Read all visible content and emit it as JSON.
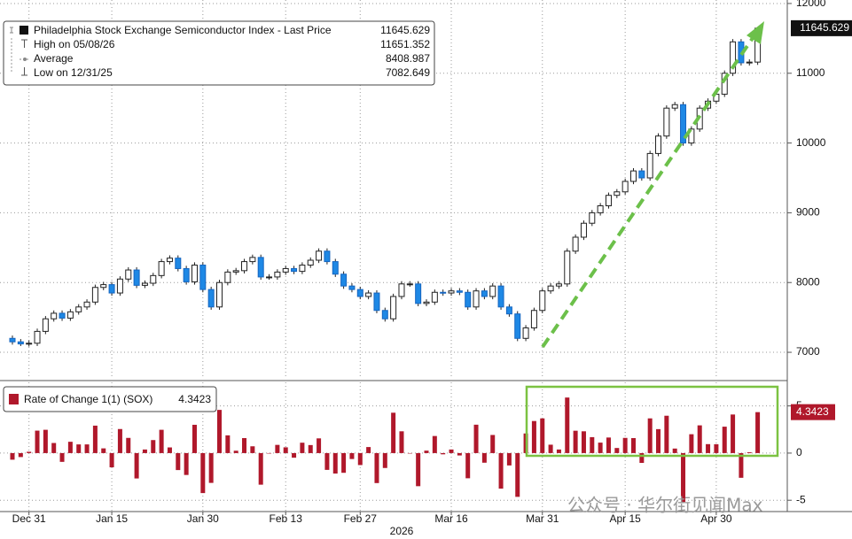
{
  "chart_data": [
    {
      "type": "candlestick",
      "legend": [
        {
          "name": "Philadelphia Stock Exchange Semiconductor Index - Last Price",
          "value": 11645.629
        },
        {
          "name": "High on 05/08/26",
          "value": 11651.352
        },
        {
          "name": "Average",
          "value": 8408.987
        },
        {
          "name": "Low on 12/31/25",
          "value": 7082.649
        }
      ],
      "open": [
        7200,
        7150,
        7120,
        7130,
        7300,
        7480,
        7560,
        7490,
        7580,
        7650,
        7720,
        7930,
        7970,
        7850,
        8050,
        8180,
        7960,
        7990,
        8100,
        8300,
        8350,
        8200,
        8010,
        8250,
        7900,
        7650,
        8000,
        8150,
        8170,
        8300,
        8360,
        8080,
        8080,
        8150,
        8200,
        8160,
        8250,
        8320,
        8450,
        8300,
        8120,
        7950,
        7900,
        7800,
        7850,
        7600,
        7480,
        7800,
        7980,
        7980,
        7700,
        7720,
        7860,
        7850,
        7880,
        7860,
        7650,
        7880,
        7800,
        7950,
        7650,
        7550,
        7200,
        7350,
        7600,
        7880,
        7950,
        7980,
        8450,
        8650,
        8850,
        9000,
        9100,
        9250,
        9300,
        9450,
        9600,
        9500,
        9850,
        10100,
        10500,
        10550,
        10000,
        10200,
        10500,
        10600,
        10700,
        11000,
        11450,
        11150,
        11160
      ],
      "high": [
        7240,
        7190,
        7170,
        7340,
        7520,
        7600,
        7600,
        7620,
        7690,
        7760,
        7970,
        8010,
        8010,
        8090,
        8220,
        8220,
        8030,
        8140,
        8340,
        8390,
        8390,
        8240,
        8290,
        8290,
        7940,
        8040,
        8190,
        8210,
        8340,
        8400,
        8400,
        8120,
        8190,
        8240,
        8240,
        8290,
        8360,
        8490,
        8490,
        8340,
        8160,
        7990,
        7940,
        7890,
        7890,
        7640,
        7840,
        8020,
        8020,
        8020,
        7760,
        7900,
        7900,
        7920,
        7920,
        7900,
        7920,
        7920,
        7990,
        7990,
        7690,
        7590,
        7390,
        7640,
        7920,
        7990,
        8020,
        8490,
        8690,
        8890,
        9040,
        9140,
        9290,
        9340,
        9490,
        9640,
        9640,
        9890,
        10140,
        10540,
        10590,
        10590,
        10240,
        10540,
        10640,
        10740,
        11040,
        11490,
        11490,
        11200,
        11651.352
      ],
      "low": [
        7110,
        7090,
        7082.649,
        7090,
        7260,
        7440,
        7450,
        7450,
        7540,
        7610,
        7680,
        7890,
        7810,
        7810,
        8010,
        7920,
        7920,
        7950,
        8060,
        8260,
        8160,
        7970,
        7970,
        7860,
        7610,
        7610,
        7960,
        8110,
        8130,
        8260,
        8040,
        8040,
        8040,
        8110,
        8120,
        8120,
        8210,
        8280,
        8260,
        8080,
        7910,
        7860,
        7760,
        7760,
        7560,
        7440,
        7440,
        7760,
        7940,
        7660,
        7660,
        7680,
        7810,
        7810,
        7820,
        7610,
        7610,
        7760,
        7760,
        7610,
        7510,
        7160,
        7160,
        7310,
        7560,
        7840,
        7910,
        7940,
        8410,
        8610,
        8810,
        8960,
        9060,
        9210,
        9260,
        9410,
        9460,
        9460,
        9810,
        10060,
        10460,
        9960,
        9960,
        10160,
        10460,
        10560,
        10660,
        10960,
        11110,
        11110,
        11120
      ],
      "close": [
        7150,
        7120,
        7130,
        7300,
        7480,
        7560,
        7490,
        7580,
        7650,
        7720,
        7930,
        7970,
        7850,
        8050,
        8180,
        7960,
        7990,
        8100,
        8300,
        8350,
        8200,
        8010,
        8250,
        7900,
        7650,
        8000,
        8150,
        8170,
        8300,
        8360,
        8080,
        8080,
        8150,
        8200,
        8160,
        8250,
        8320,
        8450,
        8300,
        8120,
        7950,
        7900,
        7800,
        7850,
        7600,
        7480,
        7800,
        7980,
        7980,
        7700,
        7720,
        7860,
        7850,
        7880,
        7860,
        7650,
        7880,
        7800,
        7950,
        7650,
        7550,
        7200,
        7350,
        7600,
        7880,
        7950,
        7980,
        8450,
        8650,
        8850,
        9000,
        9100,
        9250,
        9300,
        9450,
        9600,
        9500,
        9850,
        10100,
        10500,
        10550,
        10000,
        10200,
        10500,
        10600,
        10700,
        11000,
        11450,
        11150,
        11160,
        11645.629
      ],
      "up_color": "#ffffff",
      "down_color": "#1e88e5",
      "ylim": [
        6620,
        12050
      ],
      "yticks": [
        7000,
        8000,
        9000,
        10000,
        11000,
        12000
      ],
      "grid": true
    },
    {
      "type": "bar",
      "categories": [
        null,
        null,
        "Dec 31",
        null,
        null,
        null,
        null,
        null,
        null,
        null,
        null,
        null,
        "Jan 15",
        null,
        null,
        null,
        null,
        null,
        null,
        null,
        null,
        null,
        null,
        "Jan 30",
        null,
        null,
        null,
        null,
        null,
        null,
        null,
        null,
        null,
        "Feb 13",
        null,
        null,
        null,
        null,
        null,
        null,
        null,
        null,
        "Feb 27",
        null,
        null,
        null,
        null,
        null,
        null,
        null,
        null,
        null,
        null,
        "Mar 16",
        null,
        null,
        null,
        null,
        null,
        null,
        null,
        null,
        null,
        null,
        "Mar 31",
        null,
        null,
        null,
        null,
        null,
        null,
        null,
        null,
        null,
        "Apr 15",
        null,
        null,
        null,
        null,
        null,
        null,
        null,
        null,
        null,
        null,
        "Apr 30",
        null,
        null,
        null,
        null,
        null
      ],
      "x_label": "2026",
      "series": [
        {
          "name": "Rate of Change 1(1) (SOX)",
          "color": "#b0182b",
          "values": [
            -0.7,
            -0.42,
            0.14,
            2.38,
            2.47,
            1.07,
            -0.93,
            1.2,
            0.92,
            0.92,
            2.91,
            0.5,
            -1.51,
            2.55,
            1.61,
            -2.69,
            0.38,
            1.38,
            2.47,
            0.6,
            -1.8,
            -2.32,
            3.0,
            -4.24,
            -3.16,
            4.58,
            1.88,
            0.25,
            1.59,
            0.72,
            -3.35,
            0,
            0.87,
            0.61,
            -0.49,
            1.1,
            0.85,
            1.56,
            -1.78,
            -2.17,
            -2.09,
            -0.63,
            -1.27,
            0.64,
            -3.18,
            -1.58,
            4.28,
            2.31,
            0,
            -3.51,
            0.26,
            1.81,
            -0.13,
            0.38,
            -0.25,
            -2.67,
            3.01,
            -1.02,
            1.92,
            -3.77,
            -1.31,
            -4.64,
            2.08,
            3.4,
            3.68,
            0.89,
            0.38,
            5.89,
            2.37,
            2.31,
            1.69,
            1.11,
            1.65,
            0.54,
            1.61,
            1.59,
            -1.04,
            3.68,
            2.54,
            3.96,
            0.48,
            -5.21,
            2.0,
            2.94,
            0.95,
            0.94,
            2.8,
            4.09,
            -2.62,
            0.09,
            4.3423
          ]
        }
      ],
      "ylim": [
        -6.2,
        7.5
      ],
      "yticks": [
        -5,
        0,
        5
      ],
      "grid": true
    }
  ],
  "watermark": "公众号 · 华尔街见闻Max"
}
